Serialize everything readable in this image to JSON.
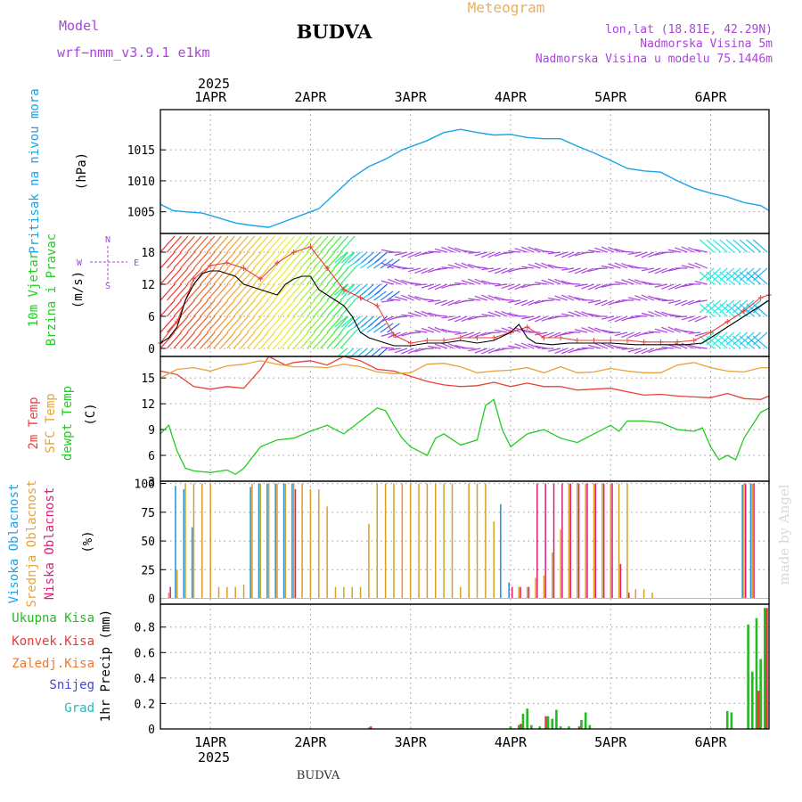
{
  "header": {
    "model_label": "Model",
    "model_name": "wrf−nmm_v3.9.1  e1km",
    "station": "BUDVA",
    "product": "Meteogram",
    "lonlat": "lon,lat (18.81E, 42.29N)",
    "elevation": "Nadmorska Visina 5m",
    "model_elevation": "Nadmorska Visina u modelu 75.1446m",
    "footer_station": "BUDVA",
    "watermark": "made by Angel",
    "year": "2025"
  },
  "colors": {
    "pressure": "#1aa3e8",
    "temp2m": "#e8413a",
    "sfc_temp": "#e8a33a",
    "dewpt": "#22cc22",
    "cloud_high": "#1e90d8",
    "cloud_mid": "#d8a020",
    "cloud_low": "#e01e78",
    "precip_total": "#22bb22",
    "precip_conv": "#e83a3a",
    "precip_frz": "#f07830",
    "snow": "#4444dd",
    "hail": "#22bbbb",
    "purple": "#aa44dd"
  },
  "chart_data": [
    {
      "type": "line",
      "panel": "pressure",
      "ylabel": "Pritisak na nivou mora",
      "unit": "(hPa)",
      "ylim": [
        1001.5,
        1021.5
      ],
      "yticks": [
        1005,
        1010,
        1015
      ],
      "x_unit": "hours from 31 Mar 2025 12UTC",
      "xlim": [
        0,
        146
      ],
      "xticks": [
        {
          "t": 12,
          "label": "1APR"
        },
        {
          "t": 36,
          "label": "2APR"
        },
        {
          "t": 60,
          "label": "3APR"
        },
        {
          "t": 84,
          "label": "4APR"
        },
        {
          "t": 108,
          "label": "5APR"
        },
        {
          "t": 132,
          "label": "6APR"
        }
      ],
      "series": [
        {
          "name": "pressure",
          "x": [
            0,
            3,
            6,
            10,
            14,
            18,
            22,
            26,
            30,
            34,
            38,
            42,
            46,
            50,
            54,
            58,
            60,
            64,
            68,
            72,
            76,
            80,
            84,
            88,
            92,
            96,
            100,
            104,
            108,
            112,
            116,
            120,
            124,
            128,
            132,
            136,
            140,
            144,
            146
          ],
          "y": [
            1006.2,
            1005.2,
            1005.0,
            1004.8,
            1004.0,
            1003.2,
            1002.8,
            1002.5,
            1003.5,
            1004.5,
            1005.5,
            1008.0,
            1010.5,
            1012.3,
            1013.5,
            1015.0,
            1015.5,
            1016.5,
            1017.8,
            1018.3,
            1017.8,
            1017.4,
            1017.5,
            1017.0,
            1016.8,
            1016.8,
            1015.6,
            1014.5,
            1013.3,
            1012.0,
            1011.6,
            1011.4,
            1010.0,
            1008.8,
            1008.0,
            1007.4,
            1006.5,
            1006.0,
            1005.2
          ]
        }
      ]
    },
    {
      "type": "line",
      "panel": "wind",
      "ylabel": [
        "10m Vjetar",
        "Brzina i Pravac"
      ],
      "unit": "(m/s)",
      "compass": [
        "N",
        "E",
        "S",
        "W"
      ],
      "ylim": [
        -1.5,
        21.5
      ],
      "yticks": [
        0,
        6,
        12,
        18
      ],
      "series": [
        {
          "name": "wind speed",
          "x": [
            0,
            2,
            4,
            6,
            8,
            10,
            12,
            14,
            16,
            18,
            20,
            22,
            24,
            26,
            28,
            30,
            32,
            34,
            36,
            38,
            40,
            42,
            44,
            46,
            48,
            50,
            52,
            54,
            56,
            60,
            64,
            68,
            72,
            76,
            80,
            84,
            86,
            88,
            90,
            94,
            98,
            102,
            108,
            114,
            120,
            126,
            130,
            134,
            138,
            142,
            146
          ],
          "y": [
            1,
            2,
            4,
            9,
            12,
            14,
            14.5,
            14.5,
            14,
            13.5,
            12,
            11.5,
            11,
            10.5,
            10,
            12,
            13,
            13.5,
            13.5,
            11,
            10,
            9,
            8,
            6,
            3,
            2,
            1.5,
            1,
            0.5,
            0.5,
            1,
            1,
            1.5,
            1,
            1.5,
            3,
            4.5,
            2,
            1,
            0.7,
            1,
            1,
            1,
            0.7,
            0.7,
            0.7,
            1,
            3,
            5,
            7,
            9
          ]
        },
        {
          "name": "gust",
          "x": [
            0,
            4,
            8,
            12,
            16,
            20,
            24,
            28,
            32,
            36,
            40,
            44,
            48,
            52,
            56,
            60,
            64,
            68,
            72,
            76,
            80,
            84,
            88,
            92,
            96,
            100,
            104,
            108,
            112,
            116,
            120,
            124,
            128,
            132,
            136,
            140,
            144,
            146
          ],
          "y": [
            1,
            5,
            13,
            15.5,
            16,
            15,
            13,
            16,
            18,
            19,
            15,
            11,
            9.5,
            8,
            2.5,
            1,
            1.5,
            1.5,
            2,
            2,
            2,
            3,
            4,
            2,
            2,
            1.5,
            1.5,
            1.5,
            1.5,
            1.2,
            1.2,
            1.2,
            1.5,
            3,
            5,
            7,
            9.5,
            10
          ]
        }
      ]
    },
    {
      "type": "line",
      "panel": "temperature",
      "ylabel": [
        "2m Temp",
        "SFC Temp",
        "dewpt Temp"
      ],
      "unit": "(C)",
      "ylim": [
        3,
        17.5
      ],
      "yticks": [
        3,
        6,
        9,
        12,
        15
      ],
      "series": [
        {
          "name": "2m Temp",
          "x": [
            0,
            4,
            8,
            12,
            16,
            20,
            24,
            26,
            28,
            30,
            32,
            36,
            40,
            44,
            48,
            52,
            56,
            60,
            64,
            68,
            72,
            76,
            80,
            84,
            88,
            92,
            96,
            100,
            104,
            108,
            112,
            116,
            120,
            124,
            128,
            132,
            136,
            140,
            144,
            146
          ],
          "y": [
            15.8,
            15.4,
            14.0,
            13.7,
            14.0,
            13.8,
            16.0,
            17.5,
            17.0,
            16.5,
            16.8,
            17.0,
            16.5,
            17.5,
            17.0,
            16.0,
            15.8,
            15.2,
            14.6,
            14.2,
            14.0,
            14.1,
            14.5,
            14.0,
            14.4,
            14.0,
            14.0,
            13.6,
            13.7,
            13.8,
            13.4,
            13.0,
            13.1,
            12.9,
            12.8,
            12.7,
            13.2,
            12.6,
            12.5,
            12.9
          ]
        },
        {
          "name": "SFC Temp",
          "x": [
            0,
            4,
            8,
            12,
            16,
            20,
            24,
            28,
            32,
            36,
            40,
            44,
            48,
            52,
            56,
            60,
            64,
            68,
            72,
            76,
            80,
            84,
            88,
            92,
            96,
            100,
            104,
            108,
            112,
            116,
            120,
            124,
            128,
            132,
            136,
            140,
            144,
            146
          ],
          "y": [
            15.0,
            16.0,
            16.2,
            15.8,
            16.4,
            16.6,
            17.0,
            16.6,
            16.3,
            16.3,
            16.2,
            16.6,
            16.3,
            15.7,
            15.5,
            15.6,
            16.6,
            16.7,
            16.3,
            15.6,
            15.8,
            15.9,
            16.2,
            15.6,
            16.3,
            15.6,
            15.7,
            16.1,
            15.8,
            15.6,
            15.6,
            16.5,
            16.8,
            16.2,
            15.8,
            15.7,
            16.2,
            16.2
          ]
        },
        {
          "name": "dewpt Temp",
          "x": [
            0,
            2,
            4,
            6,
            8,
            12,
            16,
            18,
            20,
            24,
            28,
            32,
            36,
            40,
            44,
            48,
            52,
            54,
            56,
            58,
            60,
            64,
            66,
            68,
            72,
            76,
            78,
            80,
            82,
            84,
            88,
            92,
            96,
            100,
            104,
            108,
            110,
            112,
            116,
            120,
            124,
            128,
            130,
            132,
            134,
            136,
            138,
            140,
            144,
            146
          ],
          "y": [
            8.5,
            9.5,
            6.5,
            4.5,
            4.2,
            4.0,
            4.3,
            3.8,
            4.5,
            7.0,
            7.8,
            8.0,
            8.8,
            9.5,
            8.5,
            10.0,
            11.5,
            11.2,
            9.5,
            8.0,
            7.0,
            6.0,
            8.0,
            8.5,
            7.2,
            7.8,
            11.8,
            12.5,
            9.0,
            7.0,
            8.5,
            9.0,
            8.0,
            7.5,
            8.5,
            9.5,
            8.8,
            10.0,
            10.0,
            9.8,
            9.0,
            8.8,
            9.2,
            7.0,
            5.5,
            6.0,
            5.5,
            8.0,
            11.0,
            11.5
          ]
        }
      ]
    },
    {
      "type": "bar",
      "panel": "clouds",
      "ylabel": [
        "Visoka Oblacnost",
        "Srednja Oblacnost",
        "Niska Oblacnost"
      ],
      "unit": "(%)",
      "ylim": [
        -5,
        102
      ],
      "yticks": [
        0,
        25,
        50,
        75,
        100
      ],
      "bar_hours": [
        2,
        4,
        6,
        8,
        10,
        12,
        14,
        16,
        18,
        20,
        22,
        24,
        26,
        28,
        30,
        32,
        34,
        36,
        38,
        40,
        42,
        44,
        46,
        48,
        50,
        52,
        54,
        56,
        58,
        60,
        62,
        64,
        66,
        68,
        70,
        72,
        74,
        76,
        78,
        80,
        82,
        84,
        86,
        88,
        90,
        92,
        94,
        96,
        98,
        100,
        102,
        104,
        106,
        108,
        110,
        112,
        114,
        116,
        118,
        120,
        122,
        124,
        126,
        128,
        130,
        132,
        134,
        136,
        138,
        140,
        142,
        144
      ],
      "series": [
        {
          "name": "Visoka Oblacnost",
          "values": [
            0,
            98,
            95,
            62,
            0,
            0,
            0,
            0,
            0,
            0,
            97,
            100,
            100,
            100,
            100,
            100,
            0,
            0,
            0,
            0,
            0,
            0,
            0,
            0,
            0,
            0,
            0,
            0,
            0,
            0,
            0,
            0,
            0,
            0,
            0,
            0,
            0,
            0,
            0,
            0,
            82,
            14,
            0,
            0,
            0,
            0,
            0,
            0,
            0,
            0,
            0,
            0,
            0,
            0,
            0,
            0,
            0,
            0,
            0,
            0,
            0,
            0,
            0,
            0,
            0,
            0,
            0,
            0,
            0,
            99,
            100,
            0
          ]
        },
        {
          "name": "Srednja Oblacnost",
          "values": [
            5,
            25,
            100,
            100,
            100,
            100,
            10,
            10,
            10,
            12,
            100,
            100,
            100,
            100,
            100,
            100,
            100,
            95,
            95,
            80,
            10,
            10,
            10,
            10,
            65,
            100,
            100,
            100,
            100,
            100,
            100,
            100,
            100,
            100,
            100,
            10,
            100,
            100,
            100,
            67,
            0,
            0,
            10,
            10,
            18,
            20,
            40,
            60,
            100,
            100,
            100,
            100,
            100,
            100,
            100,
            100,
            8,
            8,
            5,
            0,
            0,
            0,
            0,
            0,
            0,
            0,
            0,
            0,
            0,
            100,
            100,
            0
          ]
        },
        {
          "name": "Niska Oblacnost",
          "values": [
            10,
            0,
            0,
            0,
            0,
            0,
            0,
            0,
            0,
            0,
            0,
            0,
            0,
            0,
            0,
            95,
            0,
            0,
            0,
            0,
            0,
            0,
            0,
            0,
            0,
            0,
            0,
            0,
            0,
            0,
            0,
            0,
            0,
            0,
            0,
            0,
            0,
            0,
            0,
            0,
            0,
            10,
            10,
            10,
            100,
            100,
            100,
            100,
            100,
            100,
            100,
            100,
            100,
            100,
            30,
            5,
            0,
            0,
            0,
            0,
            0,
            0,
            0,
            0,
            0,
            0,
            0,
            0,
            0,
            100,
            100,
            0
          ]
        }
      ]
    },
    {
      "type": "bar",
      "panel": "precip",
      "legend": [
        "Ukupna Kisa",
        "Konvek.Kisa",
        "Zaledj.Kisa",
        "Snijeg",
        "Grad"
      ],
      "ylabel": "1hr Precip (mm)",
      "ylim": [
        0,
        0.98
      ],
      "yticks": [
        0,
        0.2,
        0.4,
        0.6,
        0.8
      ],
      "series": [
        {
          "name": "Ukupna Kisa",
          "x": [
            50,
            84,
            86,
            87,
            88,
            89,
            91,
            93,
            94,
            95,
            96,
            98,
            101,
            102,
            103,
            136,
            137,
            141,
            142,
            143,
            144,
            145
          ],
          "y": [
            0.01,
            0.02,
            0.03,
            0.12,
            0.16,
            0.03,
            0.02,
            0.1,
            0.08,
            0.15,
            0.02,
            0.02,
            0.07,
            0.13,
            0.03,
            0.14,
            0.13,
            0.82,
            0.45,
            0.87,
            0.55,
            0.95
          ]
        },
        {
          "name": "Konvek.Kisa",
          "x": [
            50,
            86,
            92,
            100,
            143,
            145
          ],
          "y": [
            0.02,
            0.04,
            0.1,
            0.02,
            0.3,
            0.95
          ]
        }
      ]
    }
  ]
}
